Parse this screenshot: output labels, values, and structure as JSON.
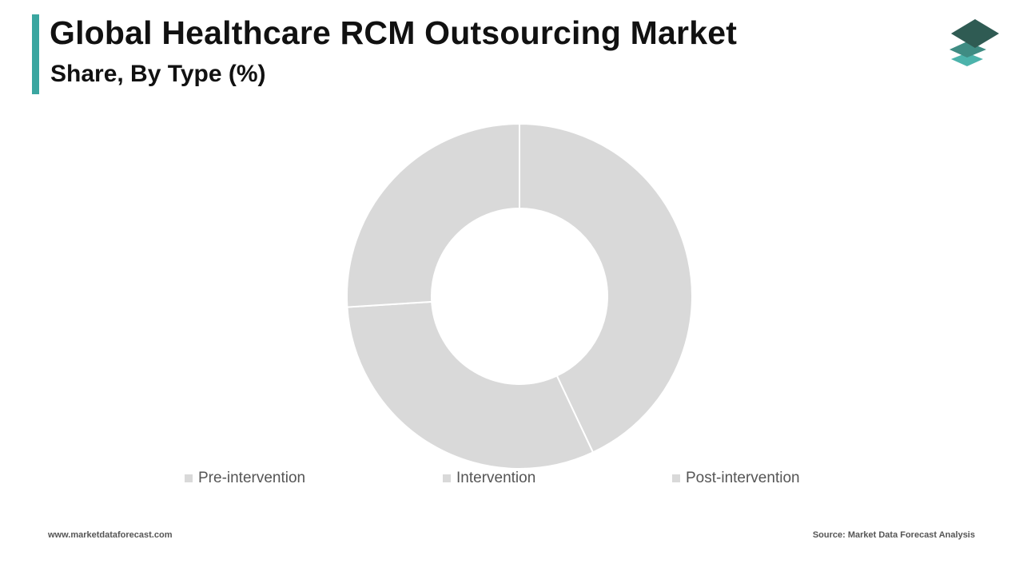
{
  "header": {
    "title": "Global Healthcare RCM Outsourcing Market",
    "subtitle": "Share, By Type (%)"
  },
  "colors": {
    "accent": "#3aa6a0",
    "slice": "#d9d9d9",
    "slice_border": "#ffffff",
    "legend_swatch": "#d9d9d9",
    "logo_top": "#2f5b53",
    "logo_mid": "#3f8c83",
    "logo_bottom": "#4cb3ab"
  },
  "logo": {
    "icon": "stacked-layers-icon"
  },
  "chart_data": {
    "type": "pie",
    "donut": true,
    "title": "",
    "categories": [
      "Pre-intervention",
      "Intervention",
      "Post-intervention"
    ],
    "values": [
      43,
      31,
      26
    ],
    "legend_position": "bottom",
    "data_labels": false
  },
  "footer": {
    "website": "www.marketdataforecast.com",
    "source": "Source: Market Data Forecast Analysis"
  }
}
